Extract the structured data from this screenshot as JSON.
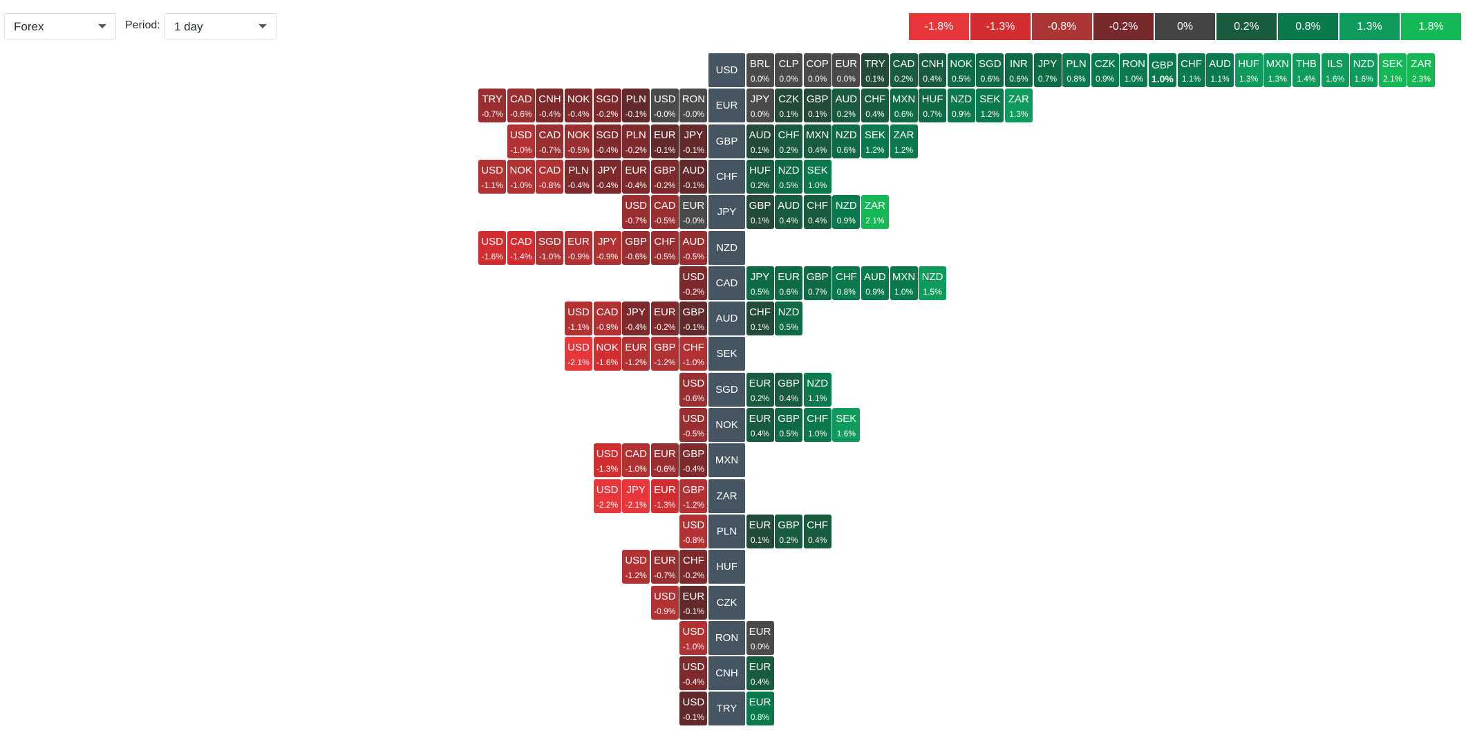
{
  "toolbar": {
    "market_select": {
      "value": "Forex"
    },
    "period_label": "Period:",
    "period_select": {
      "value": "1 day"
    }
  },
  "legend": [
    {
      "label": "-1.8%",
      "color": "#e8373b"
    },
    {
      "label": "-1.3%",
      "color": "#d22e32"
    },
    {
      "label": "-0.8%",
      "color": "#ac3536"
    },
    {
      "label": "-0.2%",
      "color": "#77282a"
    },
    {
      "label": "0%",
      "color": "#454545"
    },
    {
      "label": "0.2%",
      "color": "#185b3e"
    },
    {
      "label": "0.8%",
      "color": "#0a7a4c"
    },
    {
      "label": "1.3%",
      "color": "#0e9b5c"
    },
    {
      "label": "1.8%",
      "color": "#14b854"
    }
  ],
  "colors": {
    "base": "#455561"
  },
  "rows": [
    {
      "base": "USD",
      "left": [],
      "right": [
        {
          "s": "BRL",
          "v": "0.0%"
        },
        {
          "s": "CLP",
          "v": "0.0%"
        },
        {
          "s": "COP",
          "v": "0.0%"
        },
        {
          "s": "EUR",
          "v": "0.0%"
        },
        {
          "s": "TRY",
          "v": "0.1%"
        },
        {
          "s": "CAD",
          "v": "0.2%"
        },
        {
          "s": "CNH",
          "v": "0.4%"
        },
        {
          "s": "NOK",
          "v": "0.5%"
        },
        {
          "s": "SGD",
          "v": "0.6%"
        },
        {
          "s": "INR",
          "v": "0.6%"
        },
        {
          "s": "JPY",
          "v": "0.7%"
        },
        {
          "s": "PLN",
          "v": "0.8%"
        },
        {
          "s": "CZK",
          "v": "0.9%"
        },
        {
          "s": "RON",
          "v": "1.0%"
        },
        {
          "s": "GBP",
          "v": "1.0%",
          "bold": true
        },
        {
          "s": "CHF",
          "v": "1.1%"
        },
        {
          "s": "AUD",
          "v": "1.1%"
        },
        {
          "s": "HUF",
          "v": "1.3%"
        },
        {
          "s": "MXN",
          "v": "1.3%"
        },
        {
          "s": "THB",
          "v": "1.4%"
        },
        {
          "s": "ILS",
          "v": "1.6%"
        },
        {
          "s": "NZD",
          "v": "1.6%"
        },
        {
          "s": "SEK",
          "v": "2.1%"
        },
        {
          "s": "ZAR",
          "v": "2.3%"
        }
      ]
    },
    {
      "base": "EUR",
      "left": [
        {
          "s": "TRY",
          "v": "-0.7%"
        },
        {
          "s": "CAD",
          "v": "-0.6%"
        },
        {
          "s": "CNH",
          "v": "-0.4%"
        },
        {
          "s": "NOK",
          "v": "-0.4%"
        },
        {
          "s": "SGD",
          "v": "-0.2%"
        },
        {
          "s": "PLN",
          "v": "-0.1%"
        },
        {
          "s": "USD",
          "v": "-0.0%"
        },
        {
          "s": "RON",
          "v": "-0.0%"
        }
      ],
      "right": [
        {
          "s": "JPY",
          "v": "0.0%"
        },
        {
          "s": "CZK",
          "v": "0.1%"
        },
        {
          "s": "GBP",
          "v": "0.1%"
        },
        {
          "s": "AUD",
          "v": "0.2%"
        },
        {
          "s": "CHF",
          "v": "0.4%"
        },
        {
          "s": "MXN",
          "v": "0.6%"
        },
        {
          "s": "HUF",
          "v": "0.7%"
        },
        {
          "s": "NZD",
          "v": "0.9%"
        },
        {
          "s": "SEK",
          "v": "1.2%"
        },
        {
          "s": "ZAR",
          "v": "1.3%"
        }
      ]
    },
    {
      "base": "GBP",
      "left": [
        {
          "s": "USD",
          "v": "-1.0%"
        },
        {
          "s": "CAD",
          "v": "-0.7%"
        },
        {
          "s": "NOK",
          "v": "-0.5%"
        },
        {
          "s": "SGD",
          "v": "-0.4%"
        },
        {
          "s": "PLN",
          "v": "-0.2%"
        },
        {
          "s": "EUR",
          "v": "-0.1%"
        },
        {
          "s": "JPY",
          "v": "-0.1%"
        }
      ],
      "right": [
        {
          "s": "AUD",
          "v": "0.1%"
        },
        {
          "s": "CHF",
          "v": "0.2%"
        },
        {
          "s": "MXN",
          "v": "0.4%"
        },
        {
          "s": "NZD",
          "v": "0.6%"
        },
        {
          "s": "SEK",
          "v": "1.2%"
        },
        {
          "s": "ZAR",
          "v": "1.2%"
        }
      ]
    },
    {
      "base": "CHF",
      "left": [
        {
          "s": "USD",
          "v": "-1.1%"
        },
        {
          "s": "NOK",
          "v": "-1.0%"
        },
        {
          "s": "CAD",
          "v": "-0.8%"
        },
        {
          "s": "PLN",
          "v": "-0.4%"
        },
        {
          "s": "JPY",
          "v": "-0.4%"
        },
        {
          "s": "EUR",
          "v": "-0.4%"
        },
        {
          "s": "GBP",
          "v": "-0.2%"
        },
        {
          "s": "AUD",
          "v": "-0.1%"
        }
      ],
      "right": [
        {
          "s": "HUF",
          "v": "0.2%"
        },
        {
          "s": "NZD",
          "v": "0.5%"
        },
        {
          "s": "SEK",
          "v": "1.0%"
        }
      ]
    },
    {
      "base": "JPY",
      "left": [
        {
          "s": "USD",
          "v": "-0.7%"
        },
        {
          "s": "CAD",
          "v": "-0.5%"
        },
        {
          "s": "EUR",
          "v": "-0.0%"
        }
      ],
      "right": [
        {
          "s": "GBP",
          "v": "0.1%"
        },
        {
          "s": "AUD",
          "v": "0.4%"
        },
        {
          "s": "CHF",
          "v": "0.4%"
        },
        {
          "s": "NZD",
          "v": "0.9%"
        },
        {
          "s": "ZAR",
          "v": "2.1%"
        }
      ]
    },
    {
      "base": "NZD",
      "left": [
        {
          "s": "USD",
          "v": "-1.6%"
        },
        {
          "s": "CAD",
          "v": "-1.4%"
        },
        {
          "s": "SGD",
          "v": "-1.0%"
        },
        {
          "s": "EUR",
          "v": "-0.9%"
        },
        {
          "s": "JPY",
          "v": "-0.9%"
        },
        {
          "s": "GBP",
          "v": "-0.6%"
        },
        {
          "s": "CHF",
          "v": "-0.5%"
        },
        {
          "s": "AUD",
          "v": "-0.5%"
        }
      ],
      "right": []
    },
    {
      "base": "CAD",
      "left": [
        {
          "s": "USD",
          "v": "-0.2%"
        }
      ],
      "right": [
        {
          "s": "JPY",
          "v": "0.5%"
        },
        {
          "s": "EUR",
          "v": "0.6%"
        },
        {
          "s": "GBP",
          "v": "0.7%"
        },
        {
          "s": "CHF",
          "v": "0.8%"
        },
        {
          "s": "AUD",
          "v": "0.9%"
        },
        {
          "s": "MXN",
          "v": "1.0%"
        },
        {
          "s": "NZD",
          "v": "1.5%"
        }
      ]
    },
    {
      "base": "AUD",
      "left": [
        {
          "s": "USD",
          "v": "-1.1%"
        },
        {
          "s": "CAD",
          "v": "-0.9%"
        },
        {
          "s": "JPY",
          "v": "-0.4%"
        },
        {
          "s": "EUR",
          "v": "-0.2%"
        },
        {
          "s": "GBP",
          "v": "-0.1%"
        }
      ],
      "right": [
        {
          "s": "CHF",
          "v": "0.1%"
        },
        {
          "s": "NZD",
          "v": "0.5%"
        }
      ]
    },
    {
      "base": "SEK",
      "left": [
        {
          "s": "USD",
          "v": "-2.1%"
        },
        {
          "s": "NOK",
          "v": "-1.6%"
        },
        {
          "s": "EUR",
          "v": "-1.2%"
        },
        {
          "s": "GBP",
          "v": "-1.2%"
        },
        {
          "s": "CHF",
          "v": "-1.0%"
        }
      ],
      "right": []
    },
    {
      "base": "SGD",
      "left": [
        {
          "s": "USD",
          "v": "-0.6%"
        }
      ],
      "right": [
        {
          "s": "EUR",
          "v": "0.2%"
        },
        {
          "s": "GBP",
          "v": "0.4%"
        },
        {
          "s": "NZD",
          "v": "1.1%"
        }
      ]
    },
    {
      "base": "NOK",
      "left": [
        {
          "s": "USD",
          "v": "-0.5%"
        }
      ],
      "right": [
        {
          "s": "EUR",
          "v": "0.4%"
        },
        {
          "s": "GBP",
          "v": "0.5%"
        },
        {
          "s": "CHF",
          "v": "1.0%"
        },
        {
          "s": "SEK",
          "v": "1.6%"
        }
      ]
    },
    {
      "base": "MXN",
      "left": [
        {
          "s": "USD",
          "v": "-1.3%"
        },
        {
          "s": "CAD",
          "v": "-1.0%"
        },
        {
          "s": "EUR",
          "v": "-0.6%"
        },
        {
          "s": "GBP",
          "v": "-0.4%"
        }
      ],
      "right": []
    },
    {
      "base": "ZAR",
      "left": [
        {
          "s": "USD",
          "v": "-2.2%"
        },
        {
          "s": "JPY",
          "v": "-2.1%"
        },
        {
          "s": "EUR",
          "v": "-1.3%"
        },
        {
          "s": "GBP",
          "v": "-1.2%"
        }
      ],
      "right": []
    },
    {
      "base": "PLN",
      "left": [
        {
          "s": "USD",
          "v": "-0.8%"
        }
      ],
      "right": [
        {
          "s": "EUR",
          "v": "0.1%"
        },
        {
          "s": "GBP",
          "v": "0.2%"
        },
        {
          "s": "CHF",
          "v": "0.4%"
        }
      ]
    },
    {
      "base": "HUF",
      "left": [
        {
          "s": "USD",
          "v": "-1.2%"
        },
        {
          "s": "EUR",
          "v": "-0.7%"
        },
        {
          "s": "CHF",
          "v": "-0.2%"
        }
      ],
      "right": []
    },
    {
      "base": "CZK",
      "left": [
        {
          "s": "USD",
          "v": "-0.9%"
        },
        {
          "s": "EUR",
          "v": "-0.1%"
        }
      ],
      "right": []
    },
    {
      "base": "RON",
      "left": [
        {
          "s": "USD",
          "v": "-1.0%"
        }
      ],
      "right": [
        {
          "s": "EUR",
          "v": "0.0%"
        }
      ]
    },
    {
      "base": "CNH",
      "left": [
        {
          "s": "USD",
          "v": "-0.4%"
        }
      ],
      "right": [
        {
          "s": "EUR",
          "v": "0.4%"
        }
      ]
    },
    {
      "base": "TRY",
      "left": [
        {
          "s": "USD",
          "v": "-0.1%"
        }
      ],
      "right": [
        {
          "s": "EUR",
          "v": "0.8%"
        }
      ]
    }
  ]
}
